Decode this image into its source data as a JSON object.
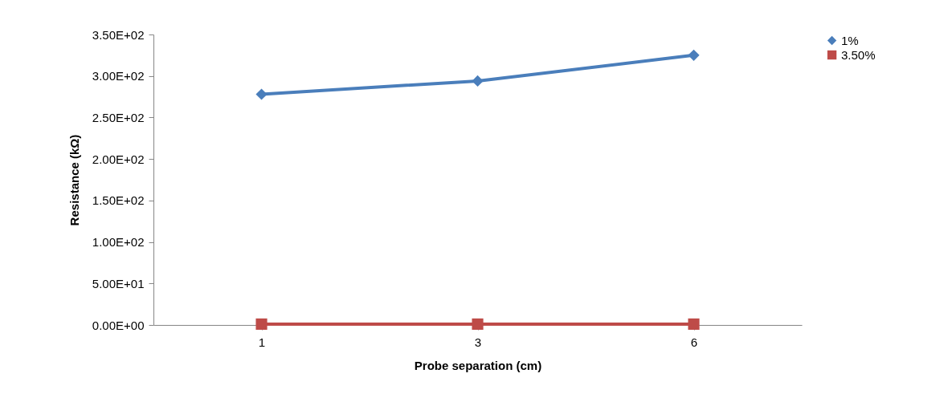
{
  "chart_data": {
    "type": "line",
    "xlabel": "Probe separation (cm)",
    "ylabel": "Resistance (kΩ)",
    "categories": [
      "1",
      "3",
      "6"
    ],
    "series": [
      {
        "name": "1%",
        "color": "#4a7ebb",
        "marker": "diamond",
        "values": [
          278,
          294,
          325
        ]
      },
      {
        "name": "3.50%",
        "color": "#be4b48",
        "marker": "square",
        "values": [
          1,
          1,
          1
        ]
      }
    ],
    "ylim": [
      0,
      350
    ],
    "yticks": [
      {
        "value": 0,
        "label": "0.00E+00"
      },
      {
        "value": 50,
        "label": "5.00E+01"
      },
      {
        "value": 100,
        "label": "1.00E+02"
      },
      {
        "value": 150,
        "label": "1.50E+02"
      },
      {
        "value": 200,
        "label": "2.00E+02"
      },
      {
        "value": 250,
        "label": "2.50E+02"
      },
      {
        "value": 300,
        "label": "3.00E+02"
      },
      {
        "value": 350,
        "label": "3.50E+02"
      }
    ],
    "grid": false,
    "legend": "right",
    "line_style": "solid"
  }
}
